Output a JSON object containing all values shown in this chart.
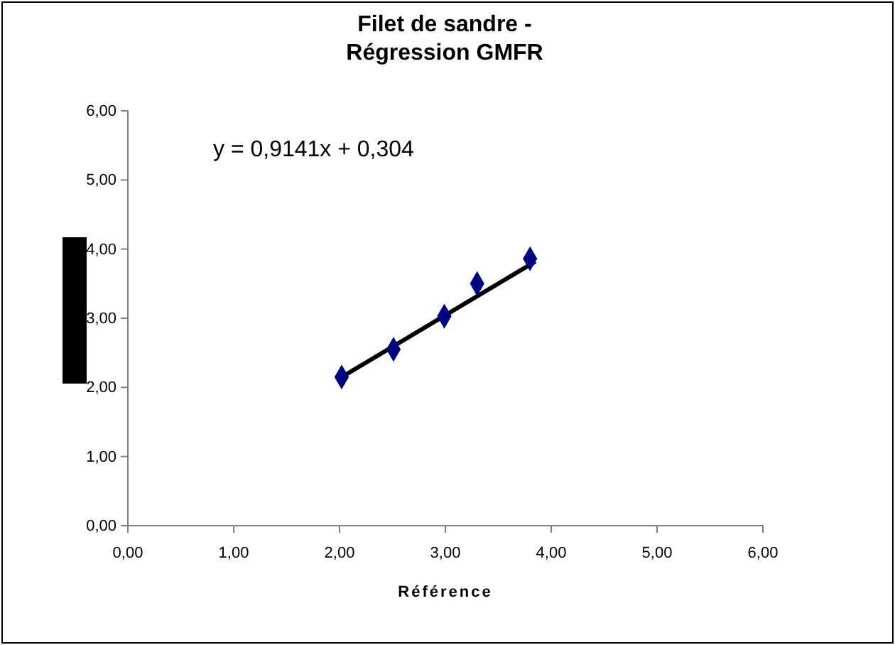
{
  "chart_data": {
    "type": "scatter",
    "title": "Filet de sandre -\nRégression GMFR",
    "xlabel": "Référence",
    "annotations": [
      "y = 0,9141x + 0,304"
    ],
    "xlim": [
      0,
      6
    ],
    "ylim": [
      0,
      6
    ],
    "xticks": [
      {
        "value": 0,
        "label": "0,00"
      },
      {
        "value": 1,
        "label": "1,00"
      },
      {
        "value": 2,
        "label": "2,00"
      },
      {
        "value": 3,
        "label": "3,00"
      },
      {
        "value": 4,
        "label": "4,00"
      },
      {
        "value": 5,
        "label": "5,00"
      },
      {
        "value": 6,
        "label": "6,00"
      }
    ],
    "yticks": [
      {
        "value": 0,
        "label": "0,00"
      },
      {
        "value": 1,
        "label": "1,00"
      },
      {
        "value": 2,
        "label": "2,00"
      },
      {
        "value": 3,
        "label": "3,00"
      },
      {
        "value": 4,
        "label": "4,00"
      },
      {
        "value": 5,
        "label": "5,00"
      },
      {
        "value": 6,
        "label": "6,00"
      }
    ],
    "marker": "diamond",
    "grid": false,
    "series": [
      {
        "color": "#000080",
        "x": [
          2.02,
          2.51,
          2.99,
          3.3,
          3.8
        ],
        "values": [
          2.15,
          2.55,
          3.03,
          3.5,
          3.86
        ]
      },
      {
        "type": "line",
        "marker": "none",
        "color": "#000000",
        "x": [
          2.0,
          3.85
        ],
        "values": [
          2.13,
          3.82
        ]
      }
    ]
  }
}
